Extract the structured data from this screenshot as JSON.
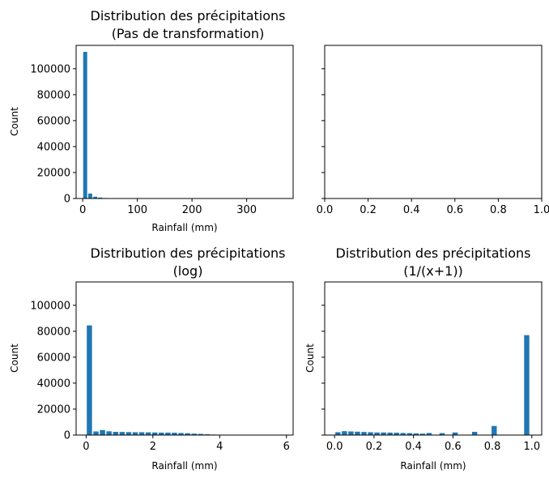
{
  "colors": {
    "bar": "#1f77b4",
    "axes": "#000000",
    "background": "#ffffff"
  },
  "chart_data": [
    {
      "type": "bar",
      "subplot": "top-left",
      "title_lines": [
        "Distribution des précipitations",
        "(Pas de transformation)"
      ],
      "xlabel": "Rainfall (mm)",
      "ylabel": "Count",
      "xlim": [
        -12,
        385
      ],
      "ylim": [
        0,
        118000
      ],
      "xticks": [
        0,
        100,
        200,
        300
      ],
      "xtick_labels": [
        "0",
        "100",
        "200",
        "300"
      ],
      "yticks": [
        0,
        20000,
        40000,
        60000,
        80000,
        100000
      ],
      "ytick_labels": [
        "0",
        "20000",
        "40000",
        "60000",
        "80000",
        "100000"
      ],
      "bin_width": 9.2,
      "bar_fraction": 0.8,
      "x": [
        4.6,
        13.8,
        23.0,
        32.2,
        41.4,
        50.6,
        59.8
      ],
      "values": [
        113000,
        3800,
        1400,
        700,
        350,
        180,
        90
      ],
      "grid": false
    },
    {
      "type": "bar",
      "subplot": "top-right",
      "title_lines": [],
      "xlabel": "",
      "ylabel": "",
      "xlim": [
        0,
        1
      ],
      "ylim": [
        0,
        118000
      ],
      "xticks": [
        0.0,
        0.2,
        0.4,
        0.6,
        0.8,
        1.0
      ],
      "xtick_labels": [
        "0.0",
        "0.2",
        "0.4",
        "0.6",
        "0.8",
        "1.0"
      ],
      "yticks": [
        0,
        20000,
        40000,
        60000,
        80000,
        100000
      ],
      "ytick_labels": [],
      "x": [],
      "values": [],
      "grid": false
    },
    {
      "type": "bar",
      "subplot": "bottom-left",
      "title_lines": [
        "Distribution des précipitations",
        "(log)"
      ],
      "xlabel": "Rainfall (mm)",
      "ylabel": "Count",
      "xlim": [
        -0.3,
        6.2
      ],
      "ylim": [
        0,
        118000
      ],
      "xticks": [
        0,
        2,
        4,
        6
      ],
      "xtick_labels": [
        "0",
        "2",
        "4",
        "6"
      ],
      "yticks": [
        0,
        20000,
        40000,
        60000,
        80000,
        100000
      ],
      "ytick_labels": [
        "0",
        "20000",
        "40000",
        "60000",
        "80000",
        "100000"
      ],
      "bin_width": 0.196,
      "bar_fraction": 0.8,
      "x": [
        0.098,
        0.294,
        0.49,
        0.686,
        0.882,
        1.078,
        1.274,
        1.47,
        1.666,
        1.862,
        2.058,
        2.254,
        2.45,
        2.646,
        2.842,
        3.038,
        3.234,
        3.43,
        3.626,
        3.822,
        4.018,
        4.214,
        4.41,
        4.606,
        4.802,
        4.998,
        5.194,
        5.39,
        5.586,
        5.782
      ],
      "values": [
        84500,
        2800,
        3900,
        2900,
        2500,
        2400,
        2300,
        2200,
        2200,
        2100,
        2000,
        1900,
        1900,
        1800,
        1600,
        1400,
        1100,
        900,
        600,
        400,
        200,
        100,
        50,
        20,
        10,
        5,
        3,
        2,
        1,
        1
      ],
      "grid": false
    },
    {
      "type": "bar",
      "subplot": "bottom-right",
      "title_lines": [
        "Distribution des précipitations",
        "(1/(x+1))"
      ],
      "xlabel": "Rainfall (mm)",
      "ylabel": "Count",
      "xlim": [
        -0.05,
        1.05
      ],
      "ylim": [
        0,
        118000
      ],
      "xticks": [
        0.0,
        0.2,
        0.4,
        0.6,
        0.8,
        1.0
      ],
      "xtick_labels": [
        "0.0",
        "0.2",
        "0.4",
        "0.6",
        "0.8",
        "1.0"
      ],
      "yticks": [
        0,
        20000,
        40000,
        60000,
        80000,
        100000
      ],
      "ytick_labels": [],
      "bin_width": 0.033,
      "bar_fraction": 0.8,
      "x": [
        0.017,
        0.05,
        0.083,
        0.116,
        0.149,
        0.182,
        0.215,
        0.248,
        0.281,
        0.314,
        0.347,
        0.38,
        0.413,
        0.446,
        0.479,
        0.512,
        0.545,
        0.578,
        0.611,
        0.644,
        0.677,
        0.71,
        0.743,
        0.776,
        0.809,
        0.842,
        0.875,
        0.908,
        0.941,
        0.974
      ],
      "values": [
        2200,
        3000,
        2800,
        2600,
        2400,
        2200,
        2000,
        2000,
        1900,
        1800,
        1600,
        1500,
        1300,
        1100,
        1600,
        0,
        1500,
        0,
        2000,
        0,
        0,
        2500,
        0,
        0,
        7000,
        0,
        0,
        0,
        0,
        77000
      ],
      "grid": false
    }
  ]
}
